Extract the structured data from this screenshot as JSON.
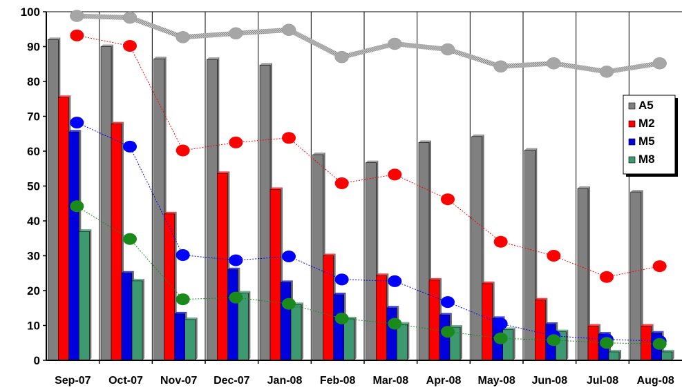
{
  "chart_data": {
    "type": "bar",
    "title": "",
    "xlabel": "",
    "ylabel": "",
    "ylim": [
      0,
      100
    ],
    "yticks": [
      0,
      10,
      20,
      30,
      40,
      50,
      60,
      70,
      80,
      90,
      100
    ],
    "grid": "vertical",
    "legend_position": "right",
    "categories": [
      "Sep-07",
      "Oct-07",
      "Nov-07",
      "Dec-07",
      "Jan-08",
      "Feb-08",
      "Mar-08",
      "Apr-08",
      "May-08",
      "Jun-08",
      "Jul-08",
      "Aug-08"
    ],
    "series": [
      {
        "name": "A5",
        "color": "#808080",
        "values": [
          92,
          90,
          86.5,
          86.3,
          84.7,
          59,
          56.7,
          62.5,
          64.2,
          60.3,
          49.3,
          48.3
        ]
      },
      {
        "name": "M2",
        "color": "#ff0000",
        "values": [
          75.4,
          67.8,
          42,
          53.6,
          49,
          30,
          24.3,
          23,
          22,
          17.3,
          9.8,
          9.8
        ]
      },
      {
        "name": "M5",
        "color": "#0000dd",
        "values": [
          65.5,
          25,
          13.3,
          26,
          22.3,
          18.8,
          15,
          13,
          12,
          10.3,
          7.5,
          7.8
        ]
      },
      {
        "name": "M8",
        "color": "#3d9970",
        "values": [
          37,
          22.8,
          11.7,
          19.3,
          16,
          11.9,
          10.4,
          9.5,
          8.8,
          8.2,
          2.4,
          2.4
        ]
      }
    ],
    "line_series": [
      {
        "color": "#a6a6a6",
        "values": [
          98.8,
          98.3,
          92.7,
          93.8,
          94.8,
          87,
          90.8,
          89.2,
          84.3,
          85.2,
          82.8,
          85.2
        ]
      },
      {
        "color": "#ff0000",
        "values": [
          93.2,
          90.2,
          60.2,
          62.5,
          63.8,
          50.8,
          53.3,
          46.2,
          34,
          30,
          23.9,
          27
        ]
      },
      {
        "color": "#0000ff",
        "values": [
          68.2,
          61.3,
          30.2,
          28.7,
          29.8,
          23.2,
          22.7,
          16.7,
          10.5,
          7,
          6,
          5.5
        ]
      },
      {
        "color": "#1a8a1a",
        "values": [
          44.2,
          34.8,
          17.5,
          18,
          16.2,
          12,
          10.5,
          8.2,
          6.3,
          5.8,
          5,
          4.7
        ]
      }
    ]
  }
}
